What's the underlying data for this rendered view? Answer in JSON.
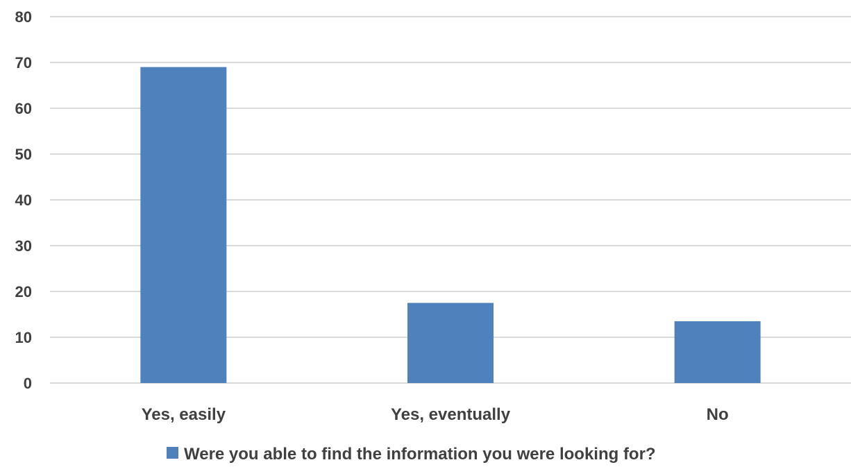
{
  "chart_data": {
    "type": "bar",
    "categories": [
      "Yes, easily",
      "Yes, eventually",
      "No"
    ],
    "series": [
      {
        "name": "Were you able to find the information you were looking for?",
        "values": [
          69,
          17.5,
          13.5
        ],
        "color": "#4f81bd"
      }
    ],
    "yticks": [
      "0",
      "10",
      "20",
      "30",
      "40",
      "50",
      "60",
      "70",
      "80"
    ],
    "ylim": [
      0,
      80
    ],
    "grid": true,
    "legend_position": "bottom"
  }
}
